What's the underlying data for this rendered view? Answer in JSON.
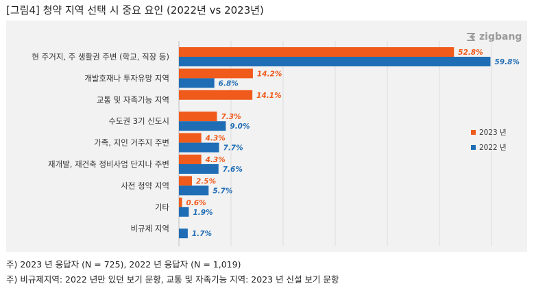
{
  "figure": {
    "title": "[그림4] 청약 지역 선택 시 중요 요인 (2022년 vs 2023년)",
    "logo_text": "zigbang",
    "footnotes": [
      "주) 2023 년 응답자 (N = 725), 2022 년 응답자 (N = 1,019)",
      "주) 비규제지역: 2022 년만 있던 보기 문항, 교통 및 자족기능 지역: 2023 년 신설 보기 문항"
    ]
  },
  "chart_data": {
    "type": "bar",
    "orientation": "horizontal",
    "categories": [
      "현 주거지, 주 생활권 주변 (학교, 직장 등)",
      "개발호재나 투자유망 지역",
      "교통 및 자족기능 지역",
      "수도권 3기 신도시",
      "가족, 지인 거주지 주변",
      "재개발, 재건축 정비사업 단지나 주변",
      "사전 청약 지역",
      "기타",
      "비규제 지역"
    ],
    "series": [
      {
        "name": "2023 년",
        "color": "#f05a1a",
        "values": [
          52.8,
          14.2,
          14.1,
          7.3,
          4.3,
          4.3,
          2.5,
          0.6,
          null
        ],
        "labels": [
          "52.8%",
          "14.2%",
          "14.1%",
          "7.3%",
          "4.3%",
          "4.3%",
          "2.5%",
          "0.6%",
          null
        ]
      },
      {
        "name": "2022 년",
        "color": "#1f6db5",
        "values": [
          59.8,
          6.8,
          null,
          9.0,
          7.7,
          7.6,
          5.7,
          1.9,
          1.7
        ],
        "labels": [
          "59.8%",
          "6.8%",
          null,
          "9.0%",
          "7.7%",
          "7.6%",
          "5.7%",
          "1.9%",
          "1.7%"
        ]
      }
    ],
    "xlim": [
      0,
      60
    ],
    "grid": "vertical",
    "legend_position": "right",
    "title": "",
    "xlabel": "",
    "ylabel": ""
  }
}
